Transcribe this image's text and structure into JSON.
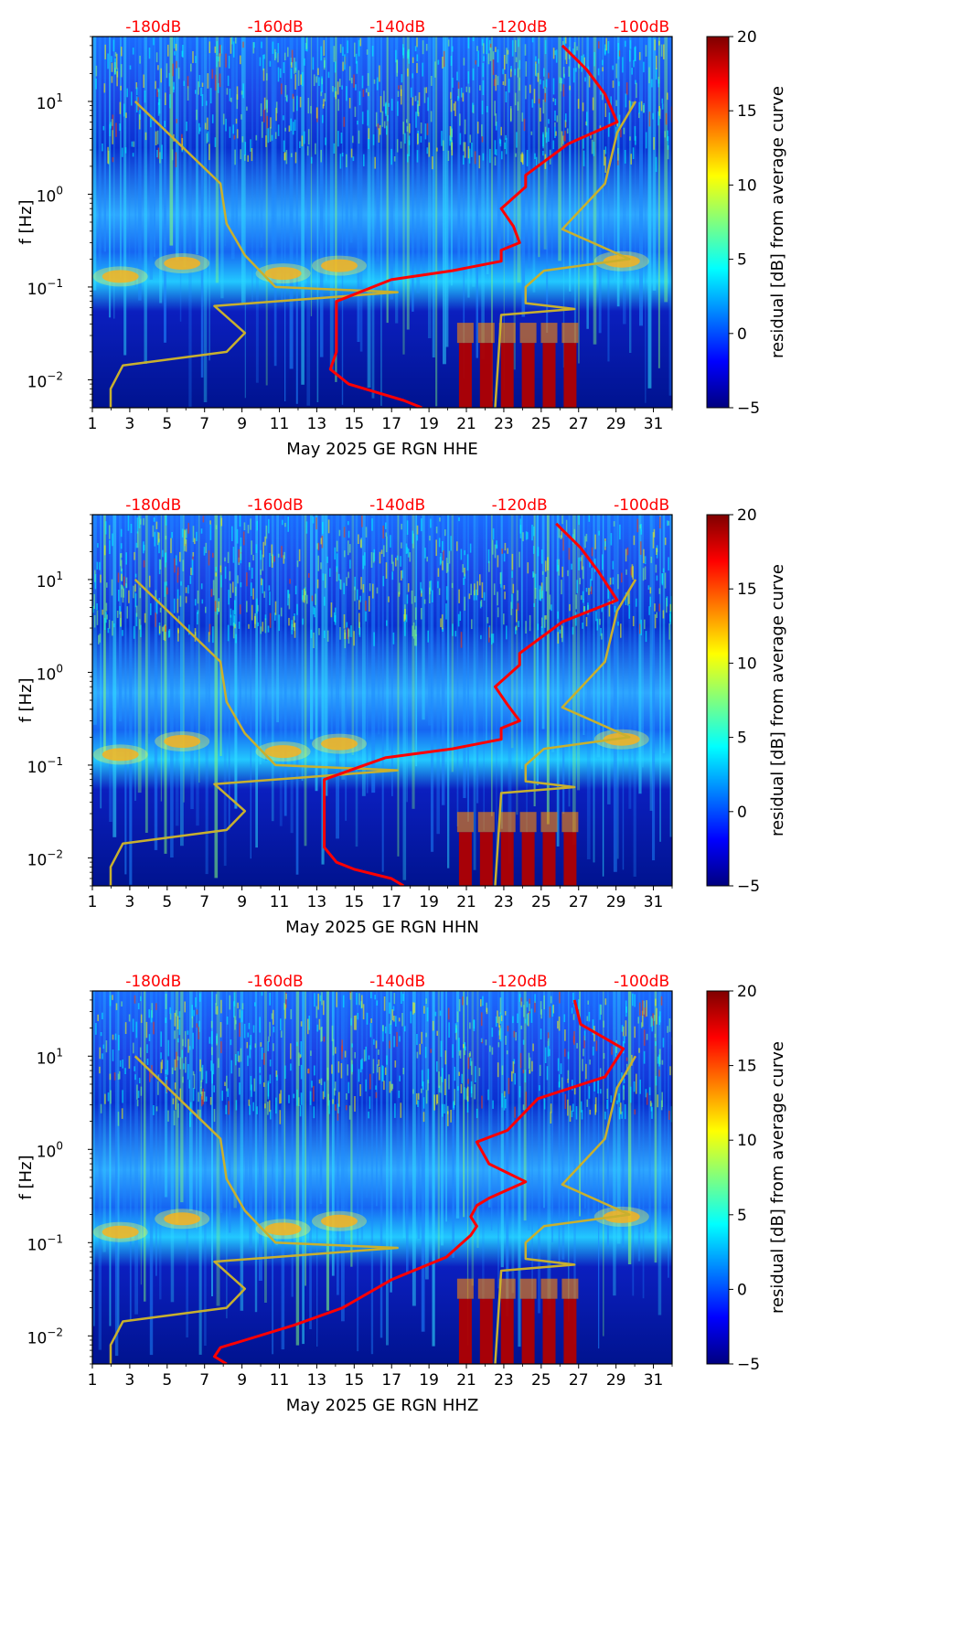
{
  "colors": {
    "nlnm_nhnm": "#c8b02e",
    "median_psd": "#ff0000",
    "top_db_labels": "#ff0000",
    "colormap": [
      "#00007f",
      "#0000ff",
      "#007fff",
      "#00ffff",
      "#7fff7f",
      "#ffff00",
      "#ff7f00",
      "#ff0000",
      "#7f0000"
    ]
  },
  "chart_data": [
    {
      "type": "heatmap",
      "title": "",
      "xlabel": "May 2025 GE RGN  HHE",
      "ylabel": "f [Hz]",
      "x_ticks": [
        "1",
        "3",
        "5",
        "7",
        "9",
        "11",
        "13",
        "15",
        "17",
        "19",
        "21",
        "23",
        "25",
        "27",
        "29",
        "31"
      ],
      "x_range": [
        1,
        32
      ],
      "y_scale": "log",
      "y_range": [
        0.005,
        50
      ],
      "y_ticks": [
        {
          "value": 0.01,
          "base": "10",
          "exp": "−2"
        },
        {
          "value": 0.1,
          "base": "10",
          "exp": "−1"
        },
        {
          "value": 1,
          "base": "10",
          "exp": "0"
        },
        {
          "value": 10,
          "base": "10",
          "exp": "1"
        }
      ],
      "top_axis_labels": [
        "-180dB",
        "-160dB",
        "-140dB",
        "-120dB",
        "-100dB"
      ],
      "top_axis_values": [
        -180,
        -160,
        -140,
        -120,
        -100
      ],
      "colorbar": {
        "label": "residual [dB] from average curve",
        "range": [
          -5,
          20
        ],
        "ticks": [
          "−5",
          "0",
          "5",
          "10",
          "15",
          "20"
        ],
        "tick_values": [
          -5,
          0,
          5,
          10,
          15,
          20
        ]
      },
      "series": [
        {
          "role": "noise-model-low",
          "db": [
            -187,
            -187,
            -185,
            -168,
            -165,
            -170,
            -140,
            -160,
            -165,
            -168,
            -169,
            -183
          ]
        },
        {
          "role": "noise-model-high",
          "db": [
            -124,
            -123,
            -111,
            -119,
            -119,
            -116,
            -102,
            -113,
            -106,
            -104,
            -101
          ]
        },
        {
          "role": "median-psd",
          "db": [
            -136,
            -139,
            -144,
            -148,
            -151,
            -150,
            -150,
            -150,
            -141,
            -131,
            -123,
            -123,
            -120,
            -121,
            -123,
            -119,
            -119,
            -112,
            -104,
            -106,
            -109,
            -113
          ]
        }
      ]
    },
    {
      "type": "heatmap",
      "title": "",
      "xlabel": "May 2025 GE RGN  HHN",
      "ylabel": "f [Hz]",
      "x_ticks": [
        "1",
        "3",
        "5",
        "7",
        "9",
        "11",
        "13",
        "15",
        "17",
        "19",
        "21",
        "23",
        "25",
        "27",
        "29",
        "31"
      ],
      "x_range": [
        1,
        32
      ],
      "y_scale": "log",
      "y_range": [
        0.005,
        50
      ],
      "y_ticks": [
        {
          "value": 0.01,
          "base": "10",
          "exp": "−2"
        },
        {
          "value": 0.1,
          "base": "10",
          "exp": "−1"
        },
        {
          "value": 1,
          "base": "10",
          "exp": "0"
        },
        {
          "value": 10,
          "base": "10",
          "exp": "1"
        }
      ],
      "top_axis_labels": [
        "-180dB",
        "-160dB",
        "-140dB",
        "-120dB",
        "-100dB"
      ],
      "top_axis_values": [
        -180,
        -160,
        -140,
        -120,
        -100
      ],
      "colorbar": {
        "label": "residual [dB] from average curve",
        "range": [
          -5,
          20
        ],
        "ticks": [
          "−5",
          "0",
          "5",
          "10",
          "15",
          "20"
        ],
        "tick_values": [
          -5,
          0,
          5,
          10,
          15,
          20
        ]
      },
      "series": [
        {
          "role": "noise-model-low",
          "db": [
            -187,
            -187,
            -185,
            -168,
            -165,
            -170,
            -140,
            -160,
            -165,
            -168,
            -169,
            -183
          ]
        },
        {
          "role": "noise-model-high",
          "db": [
            -124,
            -123,
            -111,
            -119,
            -119,
            -116,
            -102,
            -113,
            -106,
            -104,
            -101
          ]
        },
        {
          "role": "median-psd",
          "db": [
            -139,
            -141,
            -147,
            -150,
            -152,
            -152,
            -152,
            -152,
            -142,
            -131,
            -123,
            -123,
            -120,
            -122,
            -124,
            -120,
            -120,
            -113,
            -104,
            -107,
            -110,
            -114
          ]
        }
      ]
    },
    {
      "type": "heatmap",
      "title": "",
      "xlabel": "May 2025 GE RGN  HHZ",
      "ylabel": "f [Hz]",
      "x_ticks": [
        "1",
        "3",
        "5",
        "7",
        "9",
        "11",
        "13",
        "15",
        "17",
        "19",
        "21",
        "23",
        "25",
        "27",
        "29",
        "31"
      ],
      "x_range": [
        1,
        32
      ],
      "y_scale": "log",
      "y_range": [
        0.005,
        50
      ],
      "y_ticks": [
        {
          "value": 0.01,
          "base": "10",
          "exp": "−2"
        },
        {
          "value": 0.1,
          "base": "10",
          "exp": "−1"
        },
        {
          "value": 1,
          "base": "10",
          "exp": "0"
        },
        {
          "value": 10,
          "base": "10",
          "exp": "1"
        }
      ],
      "top_axis_labels": [
        "-180dB",
        "-160dB",
        "-140dB",
        "-120dB",
        "-100dB"
      ],
      "top_axis_values": [
        -180,
        -160,
        -140,
        -120,
        -100
      ],
      "colorbar": {
        "label": "residual [dB] from average curve",
        "range": [
          -5,
          20
        ],
        "ticks": [
          "−5",
          "0",
          "5",
          "10",
          "15",
          "20"
        ],
        "tick_values": [
          -5,
          0,
          5,
          10,
          15,
          20
        ]
      },
      "series": [
        {
          "role": "noise-model-low",
          "db": [
            -187,
            -187,
            -185,
            -168,
            -165,
            -170,
            -140,
            -160,
            -165,
            -168,
            -169,
            -183
          ]
        },
        {
          "role": "noise-model-high",
          "db": [
            -124,
            -123,
            -111,
            -119,
            -119,
            -116,
            -102,
            -113,
            -106,
            -104,
            -101
          ]
        },
        {
          "role": "median-psd",
          "db": [
            -168,
            -170,
            -169,
            -165,
            -157,
            -149,
            -141,
            -132,
            -128,
            -127,
            -128,
            -127,
            -125,
            -119,
            -125,
            -127,
            -122,
            -117,
            -106,
            -103,
            -110,
            -111
          ]
        }
      ]
    }
  ]
}
